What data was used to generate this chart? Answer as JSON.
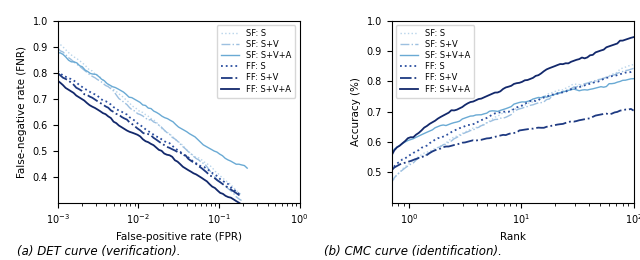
{
  "sf_s_color": "#b8d4ea",
  "sf_sv_color": "#9dc0e0",
  "sf_sva_color": "#6aaad4",
  "ff_s_color": "#2b4fa0",
  "ff_sv_color": "#1e3a82",
  "ff_sva_color": "#12286b",
  "fig_width": 6.4,
  "fig_height": 2.6,
  "dpi": 100,
  "left_xlabel": "False-positive rate (FPR)",
  "left_ylabel": "False-negative rate (FNR)",
  "left_caption": "(a) DET curve (verification).",
  "right_xlabel": "Rank",
  "right_ylabel": "Accuracy (%)",
  "right_caption": "(b) CMC curve (identification).",
  "legend_labels": [
    "SF: S",
    "SF: S+V",
    "SF: S+V+A",
    "FF: S",
    "FF: S+V",
    "FF: S+V+A"
  ]
}
